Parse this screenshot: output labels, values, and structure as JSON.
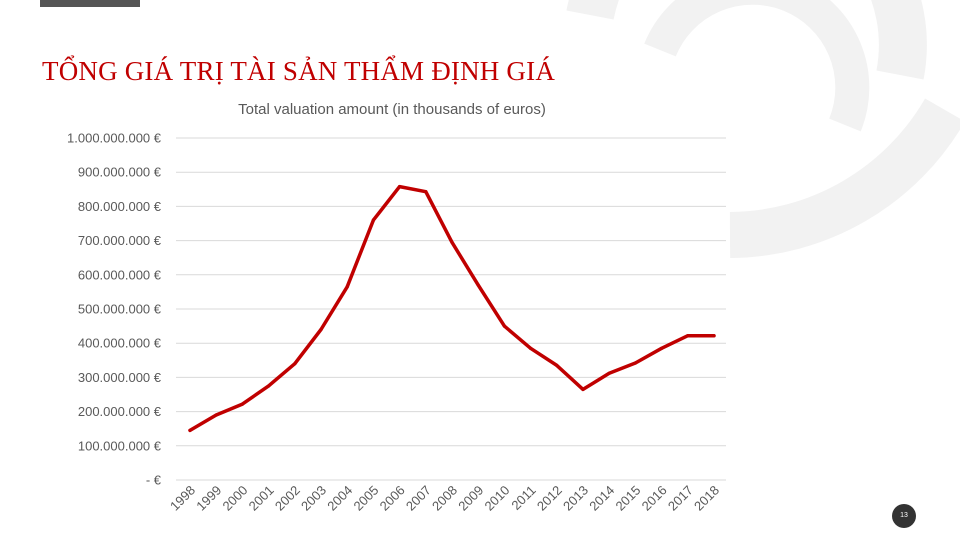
{
  "slide": {
    "title": "TỔNG GIÁ TRỊ TÀI SẢN THẨM ĐỊNH GIÁ",
    "page_number": "13"
  },
  "colors": {
    "title": "#c00000",
    "line": "#c00000",
    "grid": "#d9d9d9",
    "axis_text": "#595959",
    "decoration": "#f2f2f2"
  },
  "chart_data": {
    "type": "line",
    "title": "Total valuation amount (in thousands of euros)",
    "xlabel": "",
    "ylabel": "",
    "ylim": [
      0,
      1000000000
    ],
    "grid": true,
    "legend": "none",
    "y_ticks": [
      {
        "value": 1000000000,
        "label": "1.000.000.000 €"
      },
      {
        "value": 900000000,
        "label": "900.000.000 €"
      },
      {
        "value": 800000000,
        "label": "800.000.000 €"
      },
      {
        "value": 700000000,
        "label": "700.000.000 €"
      },
      {
        "value": 600000000,
        "label": "600.000.000 €"
      },
      {
        "value": 500000000,
        "label": "500.000.000 €"
      },
      {
        "value": 400000000,
        "label": "400.000.000 €"
      },
      {
        "value": 300000000,
        "label": "300.000.000 €"
      },
      {
        "value": 200000000,
        "label": "200.000.000 €"
      },
      {
        "value": 100000000,
        "label": "100.000.000 €"
      },
      {
        "value": 0,
        "label": "-   €"
      }
    ],
    "categories": [
      "1998",
      "1999",
      "2000",
      "2001",
      "2002",
      "2003",
      "2004",
      "2005",
      "2006",
      "2007",
      "2008",
      "2009",
      "2010",
      "2011",
      "2012",
      "2013",
      "2014",
      "2015",
      "2016",
      "2017",
      "2018"
    ],
    "series": [
      {
        "values": [
          145000000,
          190000000,
          222000000,
          275000000,
          340000000,
          440000000,
          565000000,
          760000000,
          858000000,
          843000000,
          695000000,
          570000000,
          450000000,
          385000000,
          335000000,
          265000000,
          312000000,
          342000000,
          385000000,
          422000000,
          422000000
        ]
      }
    ]
  }
}
